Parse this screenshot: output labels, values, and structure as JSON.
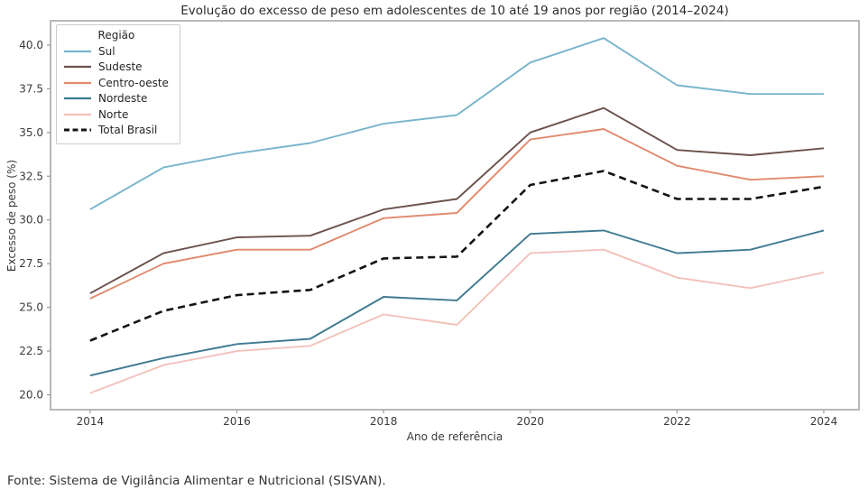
{
  "page": {
    "background": "#ffffff"
  },
  "chart_data": {
    "type": "line",
    "title": "Evolução do excesso de peso em adolescentes de 10 até 19 anos por região (2014–2024)",
    "xlabel": "Ano de referência",
    "ylabel": "Excesso de peso (%)",
    "x": [
      2014,
      2015,
      2016,
      2017,
      2018,
      2019,
      2020,
      2021,
      2022,
      2023,
      2024
    ],
    "x_ticks": [
      2014,
      2016,
      2018,
      2020,
      2022,
      2024
    ],
    "y_tick_labels": [
      "20.0",
      "22.5",
      "25.0",
      "27.5",
      "30.0",
      "32.5",
      "35.0",
      "37.5",
      "40.0"
    ],
    "y_ticks": [
      20.0,
      22.5,
      25.0,
      27.5,
      30.0,
      32.5,
      35.0,
      37.5,
      40.0
    ],
    "xlim": [
      2013.46,
      2024.48
    ],
    "ylim": [
      19.15,
      41.39
    ],
    "grid": false,
    "legend_title": "Região",
    "legend_position": "upper-left",
    "axis_color": "#9a9a9a",
    "tick_label_color": "#3a3a3a",
    "series": [
      {
        "name": "Sul",
        "color": "#79b5cc",
        "dash": null,
        "width": 1.9,
        "values": [
          30.6,
          33.0,
          33.8,
          34.4,
          35.5,
          36.0,
          39.0,
          40.4,
          37.7,
          37.2,
          37.2
        ]
      },
      {
        "name": "Sudeste",
        "color": "#6a514c",
        "dash": null,
        "width": 1.9,
        "values": [
          25.8,
          28.1,
          29.0,
          29.1,
          30.6,
          31.2,
          35.0,
          36.4,
          34.0,
          33.7,
          34.1
        ]
      },
      {
        "name": "Centro-oeste",
        "color": "#e08a6e",
        "dash": null,
        "width": 1.9,
        "values": [
          25.5,
          27.5,
          28.3,
          28.3,
          30.1,
          30.4,
          34.6,
          35.2,
          33.1,
          32.3,
          32.5
        ]
      },
      {
        "name": "Nordeste",
        "color": "#3f7a90",
        "dash": null,
        "width": 1.9,
        "values": [
          21.1,
          22.1,
          22.9,
          23.2,
          25.6,
          25.4,
          29.2,
          29.4,
          28.1,
          28.3,
          29.4
        ]
      },
      {
        "name": "Norte",
        "color": "#f3c1bb",
        "dash": null,
        "width": 1.9,
        "values": [
          20.1,
          21.7,
          22.5,
          22.8,
          24.6,
          24.0,
          28.1,
          28.3,
          26.7,
          26.1,
          27.0
        ]
      },
      {
        "name": "Total Brasil",
        "color": "#141414",
        "dash": "8 5",
        "width": 2.6,
        "values": [
          23.1,
          24.8,
          25.7,
          26.0,
          27.8,
          27.9,
          32.0,
          32.8,
          31.2,
          31.2,
          31.9
        ]
      }
    ]
  },
  "footer": {
    "source": "Fonte: Sistema de Vigilância Alimentar e Nutricional (SISVAN)."
  }
}
